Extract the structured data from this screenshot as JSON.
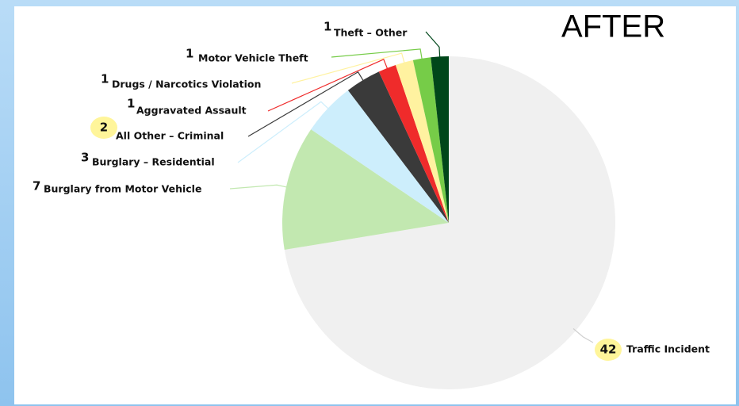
{
  "chart_data": {
    "type": "pie",
    "title": "AFTER",
    "categories": [
      "Traffic Incident",
      "Burglary from Motor Vehicle",
      "Burglary – Residential",
      "All Other – Criminal",
      "Aggravated Assault",
      "Drugs / Narcotics Violation",
      "Motor Vehicle Theft",
      "Theft – Other"
    ],
    "values": [
      42,
      7,
      3,
      2,
      1,
      1,
      1,
      1
    ],
    "colors": [
      "#f0f0f0",
      "#c2e8b0",
      "#cdeefc",
      "#3a3a3a",
      "#ef2b2b",
      "#fff2a0",
      "#76cc48",
      "#00471a"
    ]
  }
}
